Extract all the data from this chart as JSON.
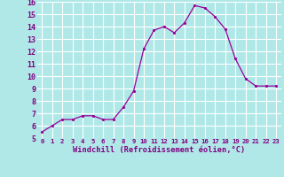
{
  "x": [
    0,
    1,
    2,
    3,
    4,
    5,
    6,
    7,
    8,
    9,
    10,
    11,
    12,
    13,
    14,
    15,
    16,
    17,
    18,
    19,
    20,
    21,
    22,
    23
  ],
  "y": [
    5.5,
    6.0,
    6.5,
    6.5,
    6.8,
    6.8,
    6.5,
    6.5,
    7.5,
    8.8,
    12.2,
    13.7,
    14.0,
    13.5,
    14.3,
    15.7,
    15.5,
    14.8,
    13.8,
    11.4,
    9.8,
    9.2,
    9.2,
    9.2
  ],
  "line_color": "#990099",
  "marker_color": "#990099",
  "bg_color": "#b0e8e8",
  "grid_color": "#ffffff",
  "xlabel": "Windchill (Refroidissement éolien,°C)",
  "xlabel_color": "#800080",
  "tick_color": "#800080",
  "ylim": [
    5,
    16
  ],
  "xlim": [
    -0.5,
    23.5
  ],
  "yticks": [
    5,
    6,
    7,
    8,
    9,
    10,
    11,
    12,
    13,
    14,
    15,
    16
  ],
  "xticks": [
    0,
    1,
    2,
    3,
    4,
    5,
    6,
    7,
    8,
    9,
    10,
    11,
    12,
    13,
    14,
    15,
    16,
    17,
    18,
    19,
    20,
    21,
    22,
    23
  ],
  "xtick_labels": [
    "0",
    "1",
    "2",
    "3",
    "4",
    "5",
    "6",
    "7",
    "8",
    "9",
    "10",
    "11",
    "12",
    "13",
    "14",
    "15",
    "16",
    "17",
    "18",
    "19",
    "20",
    "21",
    "22",
    "23"
  ],
  "ytick_labels": [
    "5",
    "6",
    "7",
    "8",
    "9",
    "10",
    "11",
    "12",
    "13",
    "14",
    "15",
    "16"
  ]
}
